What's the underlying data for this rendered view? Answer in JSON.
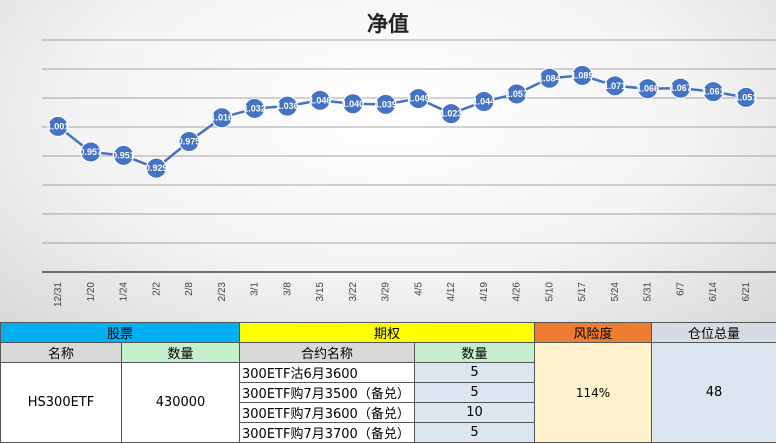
{
  "chart_data": {
    "type": "line",
    "title": "净值",
    "categories": [
      "12/31",
      "1/20",
      "1/24",
      "2/2",
      "2/8",
      "2/23",
      "3/1",
      "3/8",
      "3/15",
      "3/22",
      "3/29",
      "4/5",
      "4/12",
      "4/19",
      "4/26",
      "5/10",
      "5/17",
      "5/24",
      "5/31",
      "6/7",
      "6/14",
      "6/21"
    ],
    "values": [
      1.001,
      0.957,
      0.951,
      0.929,
      0.975,
      1.016,
      1.032,
      1.036,
      1.046,
      1.04,
      1.039,
      1.049,
      1.023,
      1.044,
      1.057,
      1.084,
      1.089,
      1.071,
      1.066,
      1.067,
      1.061,
      1.051
    ],
    "labels": [
      "1.001",
      "0.957",
      "0.951",
      "0.929",
      "0.975",
      "1.016",
      "1.032",
      "1.036",
      "1.046",
      "1.040",
      "1.039",
      "1.049",
      "1.023",
      "1.044",
      "1.057",
      "1.084",
      "1.089",
      "1.071",
      "1.066",
      "1.067",
      "1.061",
      "1.051"
    ],
    "ylim": [
      0.75,
      1.15
    ],
    "grid": true,
    "legend": "none",
    "line_color": "#4472c4"
  },
  "table": {
    "stock_header": "股票",
    "option_header": "期权",
    "risk_header": "风险度",
    "position_header": "仓位总量",
    "name_col": "名称",
    "qty_col": "数量",
    "contract_col": "合约名称",
    "option_qty_col": "数量",
    "stock_name": "HS300ETF",
    "stock_qty": "430000",
    "options": [
      {
        "name": "300ETF沽6月3600",
        "qty": "5"
      },
      {
        "name": "300ETF购7月3500（备兑）",
        "qty": "5"
      },
      {
        "name": "300ETF购7月3600（备兑）",
        "qty": "10"
      },
      {
        "name": "300ETF购7月3700（备兑）",
        "qty": "5"
      }
    ],
    "risk_value": "114%",
    "position_value": "48"
  }
}
